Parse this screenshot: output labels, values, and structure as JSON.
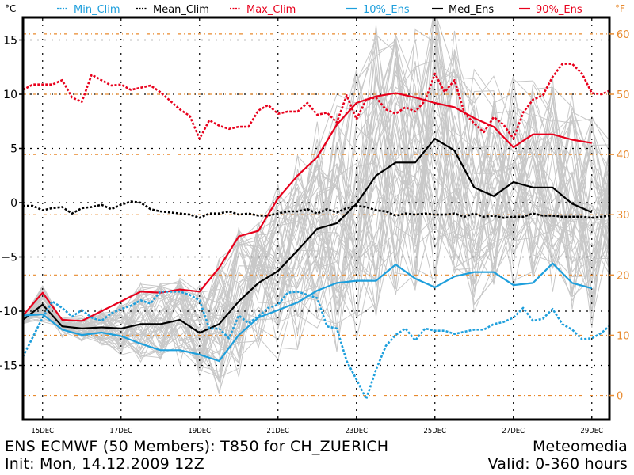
{
  "chart_data": {
    "type": "line",
    "title": "ENS ECMWF (50 Members): T850 for CH_ZUERICH",
    "subtitle": "Init: Mon, 14.12.2009 12Z",
    "source": "Meteomedia",
    "valid": "Valid: 0-360 hours",
    "ylabel_left": "°C",
    "ylabel_right": "°F",
    "ylim": [
      -20.2,
      16.8
    ],
    "xlim_hours": [
      0,
      360
    ],
    "y_ticks_left": [
      15,
      10,
      5,
      0,
      -5,
      -10,
      -15
    ],
    "y_ticks_right": [
      60,
      50,
      40,
      30,
      20,
      10,
      0
    ],
    "x_ticks": [
      {
        "label": "15DEC",
        "hour": 12
      },
      {
        "label": "17DEC",
        "hour": 60
      },
      {
        "label": "19DEC",
        "hour": 108
      },
      {
        "label": "21DEC",
        "hour": 156
      },
      {
        "label": "23DEC",
        "hour": 204
      },
      {
        "label": "25DEC",
        "hour": 252
      },
      {
        "label": "27DEC",
        "hour": 300
      },
      {
        "label": "29DEC",
        "hour": 348
      }
    ],
    "grid": true,
    "legend_position": "top",
    "colors": {
      "min_clim": "#1e9fdc",
      "mean_clim": "#000000",
      "max_clim": "#e8001c",
      "ens_10": "#1e9fdc",
      "ens_med": "#000000",
      "ens_90": "#e8001c",
      "members": "#c8c8c8",
      "fahrenheit": "#e88a2e"
    },
    "legend": [
      {
        "key": "min_clim",
        "label": "Min_Clim",
        "style": "dotted"
      },
      {
        "key": "mean_clim",
        "label": "Mean_Clim",
        "style": "dotted"
      },
      {
        "key": "max_clim",
        "label": "Max_Clim",
        "style": "dotted"
      },
      {
        "key": "ens_10",
        "label": "10%_Ens",
        "style": "solid"
      },
      {
        "key": "ens_med",
        "label": "Med_Ens",
        "style": "solid"
      },
      {
        "key": "ens_90",
        "label": "90%_Ens",
        "style": "solid"
      }
    ],
    "ens_hours": [
      0,
      12,
      24,
      36,
      48,
      60,
      72,
      84,
      96,
      108,
      120,
      132,
      144,
      156,
      168,
      180,
      192,
      204,
      216,
      228,
      240,
      252,
      264,
      276,
      288,
      300,
      312,
      324,
      336,
      348
    ],
    "series": [
      {
        "key": "ens_90",
        "name": "90%_Ens",
        "values": [
          -10.4,
          -8.3,
          -10.8,
          -10.9,
          -10.0,
          -9.1,
          -8.2,
          -8.3,
          -8.0,
          -8.2,
          -6.0,
          -3.1,
          -2.6,
          0.4,
          2.5,
          4.2,
          7.2,
          9.2,
          9.8,
          10.1,
          9.7,
          9.2,
          8.8,
          7.8,
          7.0,
          5.1,
          6.3,
          6.3,
          5.8,
          5.5
        ]
      },
      {
        "key": "ens_med",
        "name": "Med_Ens",
        "values": [
          -10.8,
          -9.4,
          -11.4,
          -11.6,
          -11.5,
          -11.6,
          -11.2,
          -11.2,
          -10.8,
          -12.0,
          -11.2,
          -9.1,
          -7.4,
          -6.3,
          -4.4,
          -2.4,
          -1.9,
          -0.1,
          2.5,
          3.7,
          3.7,
          5.9,
          4.8,
          1.4,
          0.6,
          1.9,
          1.4,
          1.4,
          -0.1,
          -0.9
        ]
      },
      {
        "key": "ens_10",
        "name": "10%_Ens",
        "values": [
          -10.4,
          -10.3,
          -11.7,
          -12.2,
          -11.97,
          -12.3,
          -13.0,
          -13.6,
          -13.6,
          -14.0,
          -14.6,
          -12.2,
          -10.6,
          -9.9,
          -9.2,
          -8.1,
          -7.4,
          -7.2,
          -7.2,
          -5.7,
          -7.0,
          -7.8,
          -6.8,
          -6.4,
          -6.4,
          -7.6,
          -7.4,
          -5.6,
          -7.4,
          -7.9
        ]
      },
      {
        "key": "max_clim",
        "name": "Max_Clim",
        "hours": [
          0,
          6,
          12,
          18,
          24,
          30,
          36,
          42,
          48,
          54,
          60,
          66,
          72,
          78,
          84,
          90,
          96,
          102,
          108,
          114,
          120,
          126,
          132,
          138,
          144,
          150,
          156,
          162,
          168,
          174,
          180,
          186,
          192,
          198,
          204,
          210,
          216,
          222,
          228,
          234,
          240,
          246,
          252,
          258,
          264,
          270,
          276,
          282,
          288,
          294,
          300,
          306,
          312,
          318,
          324,
          330,
          336,
          342,
          348,
          354,
          360
        ],
        "values": [
          10.4,
          10.9,
          10.9,
          10.9,
          11.3,
          9.7,
          9.3,
          11.8,
          11.3,
          10.8,
          10.9,
          10.4,
          10.6,
          10.8,
          10.2,
          9.4,
          8.6,
          8.0,
          5.9,
          7.6,
          7.1,
          6.8,
          7.0,
          7.0,
          8.5,
          9.0,
          8.2,
          8.4,
          8.4,
          9.2,
          8.1,
          8.3,
          7.4,
          9.9,
          7.7,
          9.5,
          9.7,
          8.6,
          8.2,
          8.8,
          8.4,
          9.4,
          11.9,
          10.2,
          11.3,
          8.3,
          7.3,
          6.5,
          7.9,
          7.2,
          5.9,
          8.3,
          9.5,
          9.9,
          11.6,
          12.8,
          12.8,
          11.9,
          10.1,
          10.0,
          10.4
        ]
      },
      {
        "key": "mean_clim",
        "name": "Mean_Clim",
        "hours": [
          0,
          6,
          12,
          18,
          24,
          30,
          36,
          42,
          48,
          54,
          60,
          66,
          72,
          78,
          84,
          90,
          96,
          102,
          108,
          114,
          120,
          126,
          132,
          138,
          144,
          150,
          156,
          162,
          168,
          174,
          180,
          186,
          192,
          198,
          204,
          210,
          216,
          222,
          228,
          234,
          240,
          246,
          252,
          258,
          264,
          270,
          276,
          282,
          288,
          294,
          300,
          306,
          312,
          318,
          324,
          330,
          336,
          342,
          348,
          354,
          360
        ],
        "values": [
          -0.3,
          -0.3,
          -0.7,
          -0.5,
          -0.4,
          -1.0,
          -0.5,
          -0.4,
          -0.2,
          -0.6,
          -0.2,
          0.1,
          0.0,
          -0.6,
          -0.8,
          -0.9,
          -1.0,
          -1.1,
          -1.4,
          -1.0,
          -1.0,
          -0.8,
          -1.1,
          -1.0,
          -1.2,
          -1.2,
          -1.0,
          -0.8,
          -0.8,
          -0.6,
          -1.0,
          -0.6,
          -0.9,
          -0.5,
          -0.3,
          -0.4,
          -0.7,
          -0.8,
          -1.2,
          -1.0,
          -1.1,
          -1.0,
          -1.1,
          -1.1,
          -1.0,
          -1.3,
          -1.0,
          -1.3,
          -1.2,
          -1.4,
          -1.3,
          -1.3,
          -1.0,
          -1.2,
          -1.2,
          -1.3,
          -1.3,
          -1.3,
          -1.4,
          -1.3,
          -1.2
        ]
      },
      {
        "key": "min_clim",
        "name": "Min_Clim",
        "hours": [
          0,
          6,
          12,
          18,
          24,
          30,
          36,
          42,
          48,
          54,
          60,
          66,
          72,
          78,
          84,
          90,
          96,
          102,
          108,
          114,
          120,
          126,
          132,
          138,
          144,
          150,
          156,
          162,
          168,
          174,
          180,
          186,
          192,
          198,
          204,
          210,
          216,
          222,
          228,
          234,
          240,
          246,
          252,
          258,
          264,
          270,
          276,
          282,
          288,
          294,
          300,
          306,
          312,
          318,
          324,
          330,
          336,
          342,
          348,
          354,
          360
        ],
        "values": [
          -14.2,
          -12.4,
          -10.6,
          -9.1,
          -9.7,
          -10.5,
          -9.9,
          -10.6,
          -10.9,
          -10.2,
          -9.8,
          -9.5,
          -9.0,
          -9.3,
          -8.2,
          -8.2,
          -8.2,
          -8.5,
          -9.0,
          -11.6,
          -11.6,
          -12.5,
          -10.4,
          -11.1,
          -10.5,
          -9.7,
          -9.4,
          -8.3,
          -8.2,
          -8.5,
          -8.8,
          -11.4,
          -11.6,
          -14.6,
          -16.3,
          -18.1,
          -15.4,
          -13.2,
          -12.2,
          -11.6,
          -12.7,
          -11.6,
          -11.8,
          -11.8,
          -12.1,
          -11.9,
          -11.7,
          -11.7,
          -11.2,
          -11.0,
          -10.6,
          -9.7,
          -10.9,
          -10.7,
          -9.8,
          -11.2,
          -11.7,
          -12.6,
          -12.5,
          -12.0,
          -11.2
        ]
      }
    ],
    "members_note": "50 ensemble member traces shown in light grey",
    "footer": {
      "line1_left": "ENS ECMWF (50 Members): T850 for CH_ZUERICH",
      "line1_right": "Meteomedia",
      "line2_left": "Init: Mon, 14.12.2009 12Z",
      "line2_right": "Valid: 0-360 hours"
    }
  }
}
